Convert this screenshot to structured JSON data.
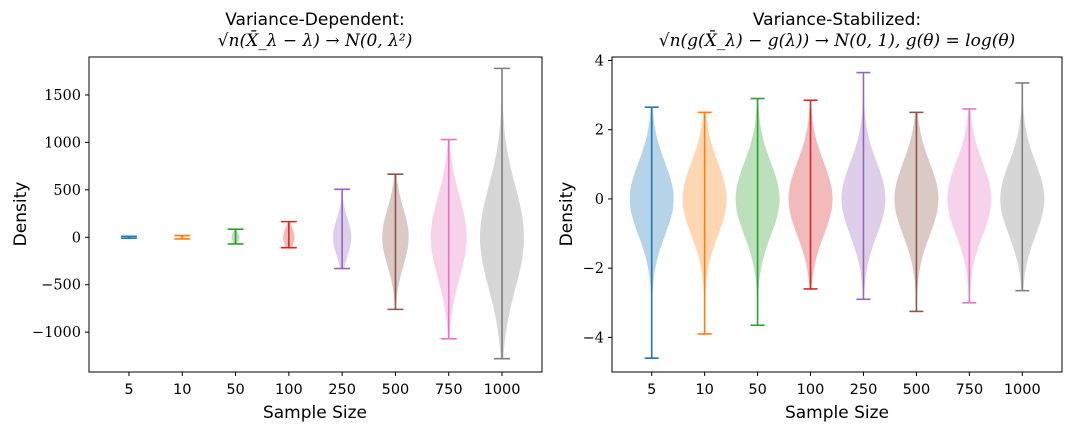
{
  "chart_data": [
    {
      "type": "violin",
      "title": "Variance-Dependent:",
      "subtitle": "√n(X̄_λ − λ) → N(0, λ²)",
      "xlabel": "Sample Size",
      "ylabel": "Density",
      "categories": [
        "5",
        "10",
        "50",
        "100",
        "250",
        "500",
        "750",
        "1000"
      ],
      "ylim": [
        -1420,
        1900
      ],
      "yticks": [
        -1000,
        -500,
        0,
        500,
        1000,
        1500
      ],
      "ytick_labels": [
        "−1000",
        "−500",
        "0",
        "500",
        "1000",
        "1500"
      ],
      "series": [
        {
          "min": -10,
          "max": 10,
          "spread": 8
        },
        {
          "min": -18,
          "max": 18,
          "spread": 14
        },
        {
          "min": -70,
          "max": 85,
          "spread": 50
        },
        {
          "min": -110,
          "max": 165,
          "spread": 95
        },
        {
          "min": -330,
          "max": 505,
          "spread": 190
        },
        {
          "min": -760,
          "max": 665,
          "spread": 300
        },
        {
          "min": -1070,
          "max": 1030,
          "spread": 430
        },
        {
          "min": -1280,
          "max": 1780,
          "spread": 540
        }
      ]
    },
    {
      "type": "violin",
      "title": "Variance-Stabilized:",
      "subtitle": "√n(g(X̄_λ) − g(λ)) → N(0, 1),   g(θ) = log(θ)",
      "xlabel": "Sample Size",
      "ylabel": "Density",
      "categories": [
        "5",
        "10",
        "50",
        "100",
        "250",
        "500",
        "750",
        "1000"
      ],
      "ylim": [
        -5.0,
        4.1
      ],
      "yticks": [
        -4,
        -2,
        0,
        2,
        4
      ],
      "ytick_labels": [
        "−4",
        "−2",
        "0",
        "2",
        "4"
      ],
      "series": [
        {
          "min": -4.6,
          "max": 2.65,
          "spread": 1.0
        },
        {
          "min": -3.9,
          "max": 2.5,
          "spread": 1.0
        },
        {
          "min": -3.65,
          "max": 2.9,
          "spread": 1.0
        },
        {
          "min": -2.6,
          "max": 2.85,
          "spread": 1.0
        },
        {
          "min": -2.9,
          "max": 3.65,
          "spread": 1.0
        },
        {
          "min": -3.25,
          "max": 2.5,
          "spread": 1.0
        },
        {
          "min": -3.0,
          "max": 2.6,
          "spread": 1.0
        },
        {
          "min": -2.65,
          "max": 3.35,
          "spread": 1.0
        }
      ]
    }
  ],
  "colors": [
    "#1f77b4",
    "#ff7f0e",
    "#2ca02c",
    "#d62728",
    "#9467bd",
    "#8c564b",
    "#e377c2",
    "#7f7f7f"
  ]
}
